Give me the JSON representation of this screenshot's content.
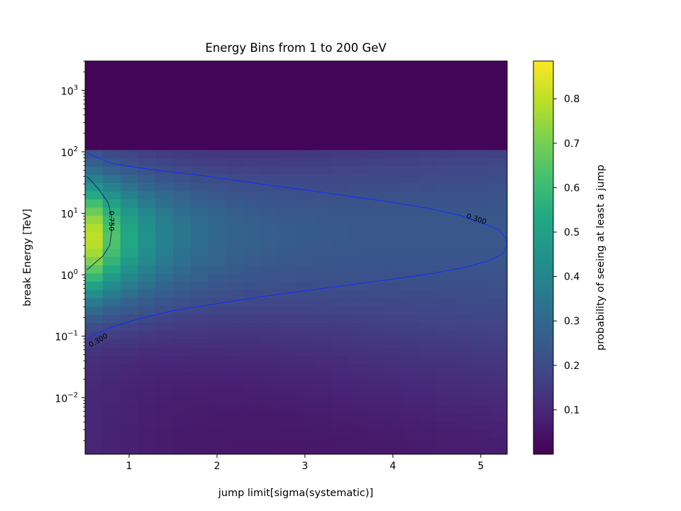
{
  "chart_data": {
    "type": "heatmap",
    "title": "Energy Bins from 1 to 200 GeV",
    "xlabel": "jump limit[sigma(systematic)]",
    "ylabel": "break Energy [TeV]",
    "colorbar_label": "probability of seeing at least a jump",
    "colormap": "viridis",
    "x_scale": "linear",
    "y_scale": "log",
    "xlim": [
      0.5,
      5.3
    ],
    "ylim": [
      0.0012,
      3000
    ],
    "x_ticks": [
      {
        "value": 1,
        "label": "1"
      },
      {
        "value": 2,
        "label": "2"
      },
      {
        "value": 3,
        "label": "3"
      },
      {
        "value": 4,
        "label": "4"
      },
      {
        "value": 5,
        "label": "5"
      }
    ],
    "y_ticks": [
      {
        "value": 0.01,
        "base": "10",
        "exp": "−2"
      },
      {
        "value": 0.1,
        "base": "10",
        "exp": "−1"
      },
      {
        "value": 1,
        "base": "10",
        "exp": "0"
      },
      {
        "value": 10,
        "base": "10",
        "exp": "1"
      },
      {
        "value": 100,
        "base": "10",
        "exp": "2"
      },
      {
        "value": 1000,
        "base": "10",
        "exp": "3"
      }
    ],
    "colorbar_range": [
      0.0,
      0.885
    ],
    "colorbar_ticks": [
      "0.1",
      "0.2",
      "0.3",
      "0.4",
      "0.5",
      "0.6",
      "0.7",
      "0.8"
    ],
    "grid": false,
    "contours": [
      {
        "level": "0.300",
        "points": [
          [
            0.52,
            95
          ],
          [
            0.8,
            65
          ],
          [
            1.1,
            55
          ],
          [
            1.6,
            45
          ],
          [
            2.0,
            38
          ],
          [
            2.5,
            30
          ],
          [
            3.0,
            24
          ],
          [
            3.5,
            19
          ],
          [
            4.0,
            15
          ],
          [
            4.4,
            12
          ],
          [
            4.8,
            9
          ],
          [
            5.0,
            7
          ],
          [
            5.2,
            5.5
          ],
          [
            5.28,
            4
          ],
          [
            5.3,
            3
          ],
          [
            5.25,
            2.2
          ],
          [
            5.1,
            1.7
          ],
          [
            4.8,
            1.3
          ],
          [
            4.45,
            1.05
          ],
          [
            4.0,
            0.85
          ],
          [
            3.5,
            0.68
          ],
          [
            3.0,
            0.55
          ],
          [
            2.5,
            0.44
          ],
          [
            2.0,
            0.34
          ],
          [
            1.5,
            0.26
          ],
          [
            1.1,
            0.19
          ],
          [
            0.8,
            0.14
          ],
          [
            0.6,
            0.105
          ],
          [
            0.52,
            0.09
          ]
        ]
      },
      {
        "level": "0.750",
        "points": [
          [
            0.52,
            40
          ],
          [
            0.65,
            25
          ],
          [
            0.76,
            15
          ],
          [
            0.8,
            9
          ],
          [
            0.8,
            5
          ],
          [
            0.78,
            3
          ],
          [
            0.7,
            2
          ],
          [
            0.6,
            1.5
          ],
          [
            0.52,
            1.2
          ]
        ]
      }
    ]
  }
}
